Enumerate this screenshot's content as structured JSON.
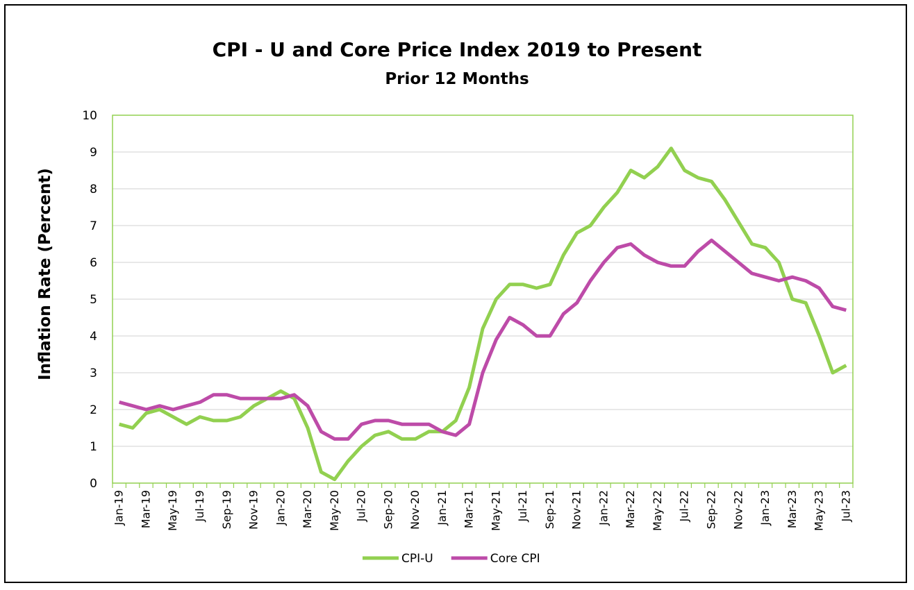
{
  "chart_data": {
    "type": "line",
    "title": "CPI - U and Core Price Index 2019 to Present",
    "subtitle": "Prior 12 Months",
    "xlabel": "",
    "ylabel": "Inflation Rate (Percent)",
    "ylim": [
      0,
      10
    ],
    "yticks": [
      "0",
      "1",
      "2",
      "3",
      "4",
      "5",
      "6",
      "7",
      "8",
      "9",
      "10"
    ],
    "grid": "horizontal",
    "legend": "bottom-center",
    "x": [
      "Jan-19",
      "Feb-19",
      "Mar-19",
      "Apr-19",
      "May-19",
      "Jun-19",
      "Jul-19",
      "Aug-19",
      "Sep-19",
      "Oct-19",
      "Nov-19",
      "Dec-19",
      "Jan-20",
      "Feb-20",
      "Mar-20",
      "Apr-20",
      "May-20",
      "Jun-20",
      "Jul-20",
      "Aug-20",
      "Sep-20",
      "Oct-20",
      "Nov-20",
      "Dec-20",
      "Jan-21",
      "Feb-21",
      "Mar-21",
      "Apr-21",
      "May-21",
      "Jun-21",
      "Jul-21",
      "Aug-21",
      "Sep-21",
      "Oct-21",
      "Nov-21",
      "Dec-21",
      "Jan-22",
      "Feb-22",
      "Mar-22",
      "Apr-22",
      "May-22",
      "Jun-22",
      "Jul-22",
      "Aug-22",
      "Sep-22",
      "Oct-22",
      "Nov-22",
      "Dec-22",
      "Jan-23",
      "Feb-23",
      "Mar-23",
      "Apr-23",
      "May-23",
      "Jun-23",
      "Jul-23"
    ],
    "xtick_labels": [
      "Jan-19",
      "Mar-19",
      "May-19",
      "Jul-19",
      "Sep-19",
      "Nov-19",
      "Jan-20",
      "Mar-20",
      "May-20",
      "Jul-20",
      "Sep-20",
      "Nov-20",
      "Jan-21",
      "Mar-21",
      "May-21",
      "Jul-21",
      "Sep-21",
      "Nov-21",
      "Jan-22",
      "Mar-22",
      "May-22",
      "Jul-22",
      "Sep-22",
      "Nov-22",
      "Jan-23",
      "Mar-23",
      "May-23",
      "Jul-23"
    ],
    "series": [
      {
        "name": "CPI-U",
        "color": "#92D050",
        "values": [
          1.6,
          1.5,
          1.9,
          2.0,
          1.8,
          1.6,
          1.8,
          1.7,
          1.7,
          1.8,
          2.1,
          2.3,
          2.5,
          2.3,
          1.5,
          0.3,
          0.1,
          0.6,
          1.0,
          1.3,
          1.4,
          1.2,
          1.2,
          1.4,
          1.4,
          1.7,
          2.6,
          4.2,
          5.0,
          5.4,
          5.4,
          5.3,
          5.4,
          6.2,
          6.8,
          7.0,
          7.5,
          7.9,
          8.5,
          8.3,
          8.6,
          9.1,
          8.5,
          8.3,
          8.2,
          7.7,
          7.1,
          6.5,
          6.4,
          6.0,
          5.0,
          4.9,
          4.0,
          3.0,
          3.2
        ]
      },
      {
        "name": "Core CPI",
        "color": "#BD4BA8",
        "values": [
          2.2,
          2.1,
          2.0,
          2.1,
          2.0,
          2.1,
          2.2,
          2.4,
          2.4,
          2.3,
          2.3,
          2.3,
          2.3,
          2.4,
          2.1,
          1.4,
          1.2,
          1.2,
          1.6,
          1.7,
          1.7,
          1.6,
          1.6,
          1.6,
          1.4,
          1.3,
          1.6,
          3.0,
          3.9,
          4.5,
          4.3,
          4.0,
          4.0,
          4.6,
          4.9,
          5.5,
          6.0,
          6.4,
          6.5,
          6.2,
          6.0,
          5.9,
          5.9,
          6.3,
          6.6,
          6.3,
          6.0,
          5.7,
          5.6,
          5.5,
          5.6,
          5.5,
          5.3,
          4.8,
          4.7
        ]
      }
    ]
  }
}
